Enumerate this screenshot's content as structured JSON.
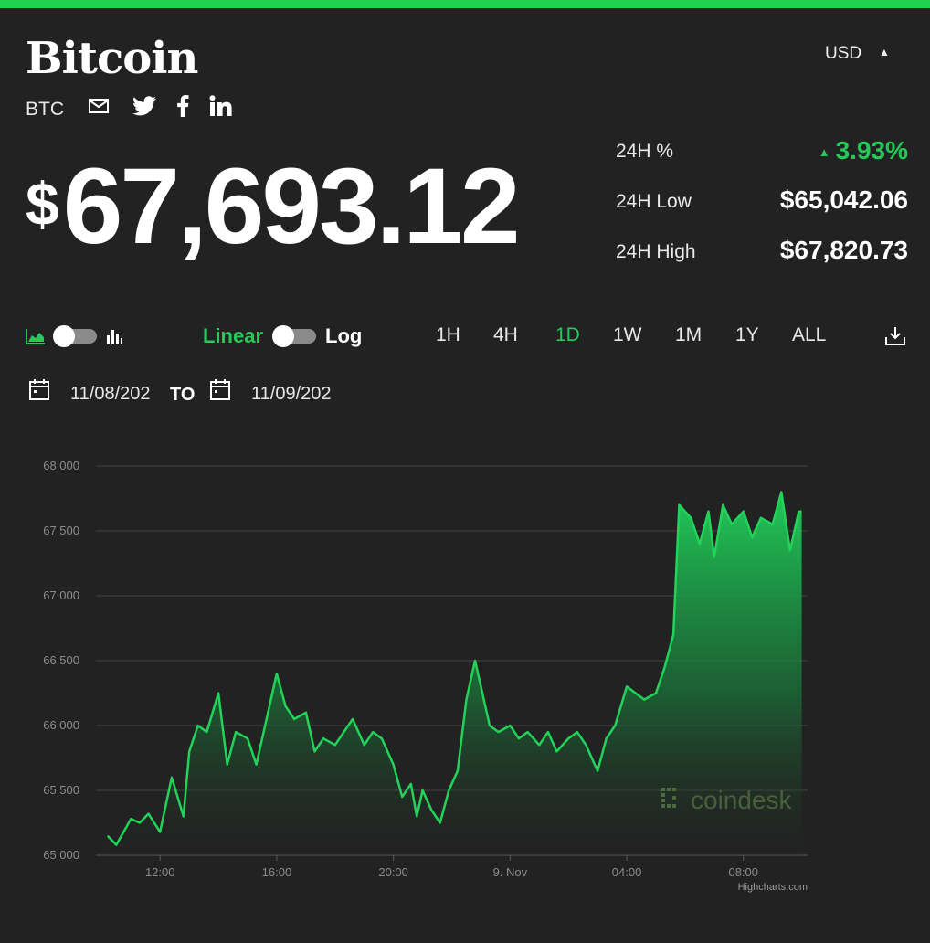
{
  "header": {
    "title": "Bitcoin",
    "symbol": "BTC",
    "currency": "USD",
    "social_icons": [
      "mail-icon",
      "twitter-icon",
      "facebook-icon",
      "linkedin-icon"
    ]
  },
  "price": {
    "currency_symbol": "$",
    "value": "67,693.12"
  },
  "stats": [
    {
      "label": "24H %",
      "value": "3.93%",
      "direction": "up",
      "color": "#25c95a"
    },
    {
      "label": "24H Low",
      "value": "$65,042.06"
    },
    {
      "label": "24H High",
      "value": "$67,820.73"
    }
  ],
  "controls": {
    "linear_label": "Linear",
    "log_label": "Log",
    "ranges": [
      "1H",
      "4H",
      "1D",
      "1W",
      "1M",
      "1Y",
      "ALL"
    ],
    "active_range": "1D"
  },
  "dates": {
    "from": "11/08/202",
    "to_label": "TO",
    "to": "11/09/202"
  },
  "colors": {
    "accent": "#1fd14d",
    "background": "#222222",
    "line": "#22d35a"
  },
  "chart_data": {
    "type": "area",
    "y_ticks": [
      "68 000",
      "67 500",
      "67 000",
      "66 500",
      "66 000",
      "65 500",
      "65 000"
    ],
    "ylim": [
      65000,
      68000
    ],
    "x_ticks": [
      "12:00",
      "16:00",
      "20:00",
      "9. Nov",
      "04:00",
      "08:00"
    ],
    "x_tick_hours": [
      12,
      16,
      20,
      24,
      28,
      32
    ],
    "xlim": [
      9.8,
      34.2
    ],
    "series": [
      {
        "x": [
          10.2,
          10.5,
          10.8,
          11.0,
          11.3,
          11.6,
          12.0,
          12.4,
          12.8,
          13.0,
          13.3,
          13.6,
          14.0,
          14.3,
          14.6,
          15.0,
          15.3,
          15.6,
          16.0,
          16.3,
          16.6,
          17.0,
          17.3,
          17.6,
          18.0,
          18.3,
          18.6,
          19.0,
          19.3,
          19.6,
          20.0,
          20.3,
          20.6,
          20.8,
          21.0,
          21.3,
          21.6,
          21.9,
          22.2,
          22.5,
          22.8,
          23.0,
          23.3,
          23.6,
          24.0,
          24.3,
          24.6,
          25.0,
          25.3,
          25.6,
          26.0,
          26.3,
          26.6,
          27.0,
          27.3,
          27.6,
          28.0,
          28.3,
          28.6,
          29.0,
          29.3,
          29.6,
          29.8,
          30.0,
          30.2,
          30.5,
          30.8,
          31.0,
          31.3,
          31.6,
          32.0,
          32.3,
          32.6,
          33.0,
          33.3,
          33.6,
          33.9,
          34.0
        ],
        "y": [
          65150,
          65080,
          65200,
          65280,
          65250,
          65320,
          65180,
          65600,
          65300,
          65800,
          66000,
          65950,
          66250,
          65700,
          65950,
          65900,
          65700,
          66000,
          66400,
          66150,
          66050,
          66100,
          65800,
          65900,
          65850,
          65950,
          66050,
          65850,
          65950,
          65900,
          65700,
          65450,
          65550,
          65300,
          65500,
          65350,
          65250,
          65500,
          65650,
          66200,
          66500,
          66300,
          66000,
          65950,
          66000,
          65900,
          65950,
          65850,
          65950,
          65800,
          65900,
          65950,
          65850,
          65650,
          65900,
          66000,
          66300,
          66250,
          66200,
          66250,
          66450,
          66700,
          67700,
          67650,
          67600,
          67400,
          67650,
          67300,
          67700,
          67550,
          67650,
          67450,
          67600,
          67550,
          67800,
          67350,
          67650,
          67650
        ]
      }
    ],
    "watermark": "coindesk",
    "credit": "Highcharts.com"
  }
}
